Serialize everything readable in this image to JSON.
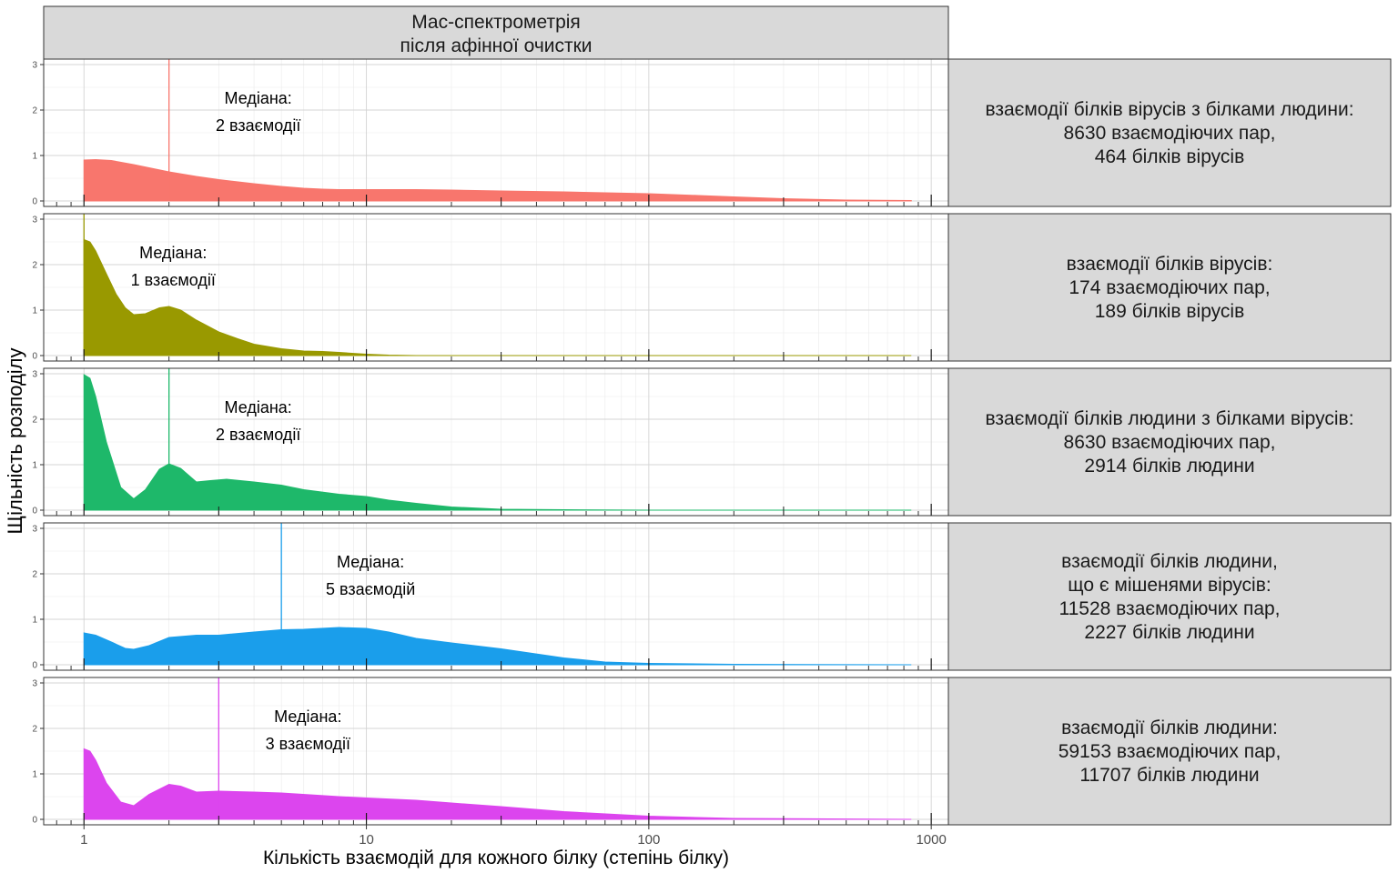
{
  "chart_data": {
    "type": "area",
    "title": "",
    "column_strip": [
      "Мас-спектрометрія",
      "після афінної очистки"
    ],
    "xlabel": "Кількість взаємодій для кожного білку (степінь білку)",
    "ylabel": "Щільність розподілу",
    "x_scale": "log10",
    "xlim": [
      0.72,
      1150
    ],
    "x_ticks": [
      1,
      10,
      100,
      1000
    ],
    "x_tick_labels": [
      "1",
      "10",
      "100",
      "1000"
    ],
    "ylim": [
      -0.12,
      3.12
    ],
    "y_ticks": [
      0,
      1,
      2,
      3
    ],
    "y_tick_labels": [
      "0",
      "1",
      "2",
      "3"
    ],
    "grid": true,
    "panels": [
      {
        "color": "#F8766D",
        "median": 2,
        "median_label": [
          "Медіана:",
          " 2 взаємодії"
        ],
        "strip": [
          "взаємодії білків вірусів з білками людини:",
          "8630 взаємодіючих пар,",
          "464 білків вірусів"
        ],
        "x": [
          1,
          1.1,
          1.25,
          1.5,
          2,
          2.5,
          3,
          4,
          5,
          6,
          7,
          8,
          10,
          15,
          20,
          30,
          50,
          100,
          150,
          200,
          300,
          500,
          850
        ],
        "y": [
          0.9,
          0.91,
          0.89,
          0.8,
          0.64,
          0.54,
          0.47,
          0.38,
          0.32,
          0.28,
          0.26,
          0.25,
          0.25,
          0.25,
          0.24,
          0.22,
          0.2,
          0.16,
          0.12,
          0.09,
          0.05,
          0.02,
          0.01
        ]
      },
      {
        "color": "#999900",
        "median": 1,
        "median_label": [
          "Медіана:",
          " 1 взаємодії"
        ],
        "strip": [
          "взаємодії білків вірусів:",
          "174 взаємодіючих пар,",
          "189 білків вірусів"
        ],
        "x": [
          1,
          1.05,
          1.1,
          1.2,
          1.3,
          1.4,
          1.5,
          1.65,
          1.85,
          2,
          2.2,
          2.5,
          3,
          3.5,
          4,
          5,
          6,
          7,
          8,
          10,
          12,
          15,
          20,
          50,
          100,
          850
        ],
        "y": [
          2.55,
          2.5,
          2.3,
          1.8,
          1.35,
          1.05,
          0.9,
          0.92,
          1.05,
          1.08,
          1.0,
          0.78,
          0.52,
          0.37,
          0.25,
          0.15,
          0.1,
          0.09,
          0.07,
          0.03,
          0.01,
          0.0,
          0.0,
          0.0,
          0.0,
          0.0
        ]
      },
      {
        "color": "#1EB86A",
        "median": 2,
        "median_label": [
          "Медіана:",
          " 2 взаємодії"
        ],
        "strip": [
          "взаємодії білків людини з білками вірусів:",
          "8630 взаємодіючих пар,",
          "2914 білків людини"
        ],
        "x": [
          1,
          1.05,
          1.1,
          1.2,
          1.35,
          1.5,
          1.65,
          1.85,
          2,
          2.2,
          2.5,
          2.8,
          3.2,
          4,
          5,
          6,
          8,
          10,
          12,
          15,
          20,
          30,
          50,
          100,
          850
        ],
        "y": [
          2.98,
          2.9,
          2.5,
          1.5,
          0.5,
          0.25,
          0.45,
          0.9,
          1.02,
          0.92,
          0.62,
          0.65,
          0.68,
          0.62,
          0.55,
          0.45,
          0.35,
          0.3,
          0.22,
          0.15,
          0.07,
          0.02,
          0.01,
          0.0,
          0.0
        ]
      },
      {
        "color": "#1A9EEB",
        "median": 5,
        "median_label": [
          "Медіана:",
          " 5 взаємодій"
        ],
        "strip": [
          "взаємодії білків людини,",
          "що є мішенями вірусів:",
          "11528 взаємодіючих пар,",
          "2227 білків людини"
        ],
        "x": [
          1,
          1.1,
          1.25,
          1.4,
          1.5,
          1.7,
          2,
          2.5,
          3,
          4,
          5,
          6,
          8,
          10,
          12,
          15,
          20,
          30,
          50,
          70,
          100,
          200,
          850
        ],
        "y": [
          0.7,
          0.65,
          0.5,
          0.36,
          0.34,
          0.42,
          0.6,
          0.65,
          0.65,
          0.72,
          0.77,
          0.78,
          0.82,
          0.8,
          0.72,
          0.58,
          0.48,
          0.35,
          0.15,
          0.06,
          0.03,
          0.01,
          0.0
        ]
      },
      {
        "color": "#DC45EE",
        "median": 3,
        "median_label": [
          "Медіана:",
          " 3 взаємодії"
        ],
        "strip": [
          "взаємодії білків людини:",
          "59153 взаємодіючих пар,",
          "11707 білків людини"
        ],
        "x": [
          1,
          1.05,
          1.1,
          1.2,
          1.35,
          1.5,
          1.7,
          2,
          2.2,
          2.5,
          3,
          4,
          5,
          8,
          10,
          15,
          20,
          30,
          50,
          100,
          200,
          850
        ],
        "y": [
          1.55,
          1.5,
          1.3,
          0.8,
          0.38,
          0.3,
          0.55,
          0.77,
          0.73,
          0.6,
          0.62,
          0.6,
          0.58,
          0.5,
          0.47,
          0.42,
          0.36,
          0.28,
          0.17,
          0.07,
          0.02,
          0.0
        ]
      }
    ]
  }
}
